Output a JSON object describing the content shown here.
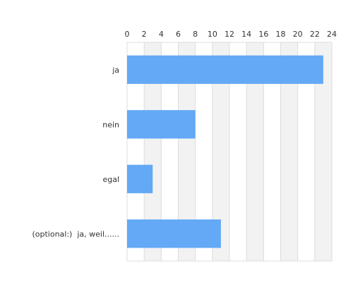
{
  "chart_data": {
    "type": "bar",
    "orientation": "horizontal",
    "categories": [
      "ja",
      "nein",
      "egal",
      "(optional:)  ja, weil......"
    ],
    "values": [
      23,
      8,
      3,
      11
    ],
    "xlim": [
      0,
      24
    ],
    "x_ticks": [
      0,
      2,
      4,
      6,
      8,
      10,
      12,
      14,
      16,
      18,
      20,
      22,
      24
    ],
    "x_axis_position": "top",
    "grid": true,
    "alternating_bands": true,
    "colors": {
      "bar": "#63a9f5",
      "band": "#f2f2f2",
      "gridline": "#dddddd",
      "text": "#333333"
    }
  }
}
